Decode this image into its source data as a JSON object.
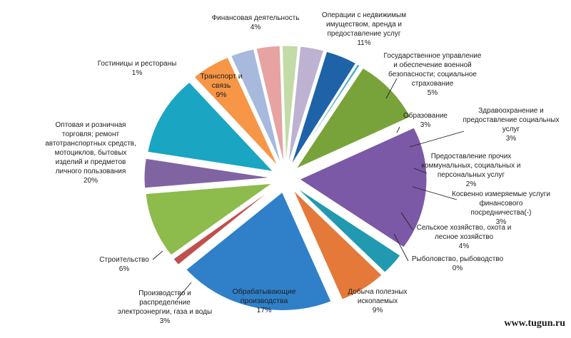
{
  "chart_data": {
    "type": "pie",
    "exploded": true,
    "slices": [
      {
        "label": "Финансовая деятельность",
        "value": 4,
        "value_label": "4%",
        "color": "#8064a2"
      },
      {
        "label": "Операции с недвижимым имуществом, аренда и предоставление услуг",
        "value": 11,
        "value_label": "11%",
        "color": "#1aa5c2"
      },
      {
        "label": "Государственное управление и обеспечение военной безопасности; социальное страхование",
        "value": 5,
        "value_label": "5%",
        "color": "#f79646"
      },
      {
        "label": "Образование",
        "value": 3,
        "value_label": "3%",
        "color": "#a7b9dc"
      },
      {
        "label": "Здравоохранение и предоставление социальных услуг",
        "value": 3,
        "value_label": "3%",
        "color": "#e6a3a2"
      },
      {
        "label": "Предоставление прочих коммунальных, социальных и персональных услуг",
        "value": 2,
        "value_label": "2%",
        "color": "#c3dba7"
      },
      {
        "label": "Косвенно измеряемые услуги финансового посредничества(-)",
        "value": 3,
        "value_label": "3%",
        "color": "#bdb2d1"
      },
      {
        "label": "Сельское хозяйство, охота и лесное хозяйство",
        "value": 4,
        "value_label": "4%",
        "color": "#1e63a8"
      },
      {
        "label": "Рыболовство, рыбоводство",
        "value": 0,
        "value_label": "0%",
        "color": "#4bacc6"
      },
      {
        "label": "Добыча полезных ископаемых",
        "value": 9,
        "value_label": "9%",
        "color": "#78a33a"
      },
      {
        "label": "Обрабатывающие производства",
        "value": 17,
        "value_label": "17%",
        "color": "#7b59a6"
      },
      {
        "label": "Производство и распределение электроэнергии, газа и воды",
        "value": 3,
        "value_label": "3%",
        "color": "#2199b1"
      },
      {
        "label": "Строительство",
        "value": 6,
        "value_label": "6%",
        "color": "#e4793a"
      },
      {
        "label": "Оптовая и розничная торговля; ремонт автотранспортных средств, мотоциклов, бытовых изделий и предметов личного пользования",
        "value": 20,
        "value_label": "20%",
        "color": "#2f80c9"
      },
      {
        "label": "Гостиницы и рестораны",
        "value": 1,
        "value_label": "1%",
        "color": "#c0504d"
      },
      {
        "label": "Транспорт и связь",
        "value": 9,
        "value_label": "9%",
        "color": "#8dbb4c"
      }
    ]
  },
  "watermark": "www.tugun.ru"
}
